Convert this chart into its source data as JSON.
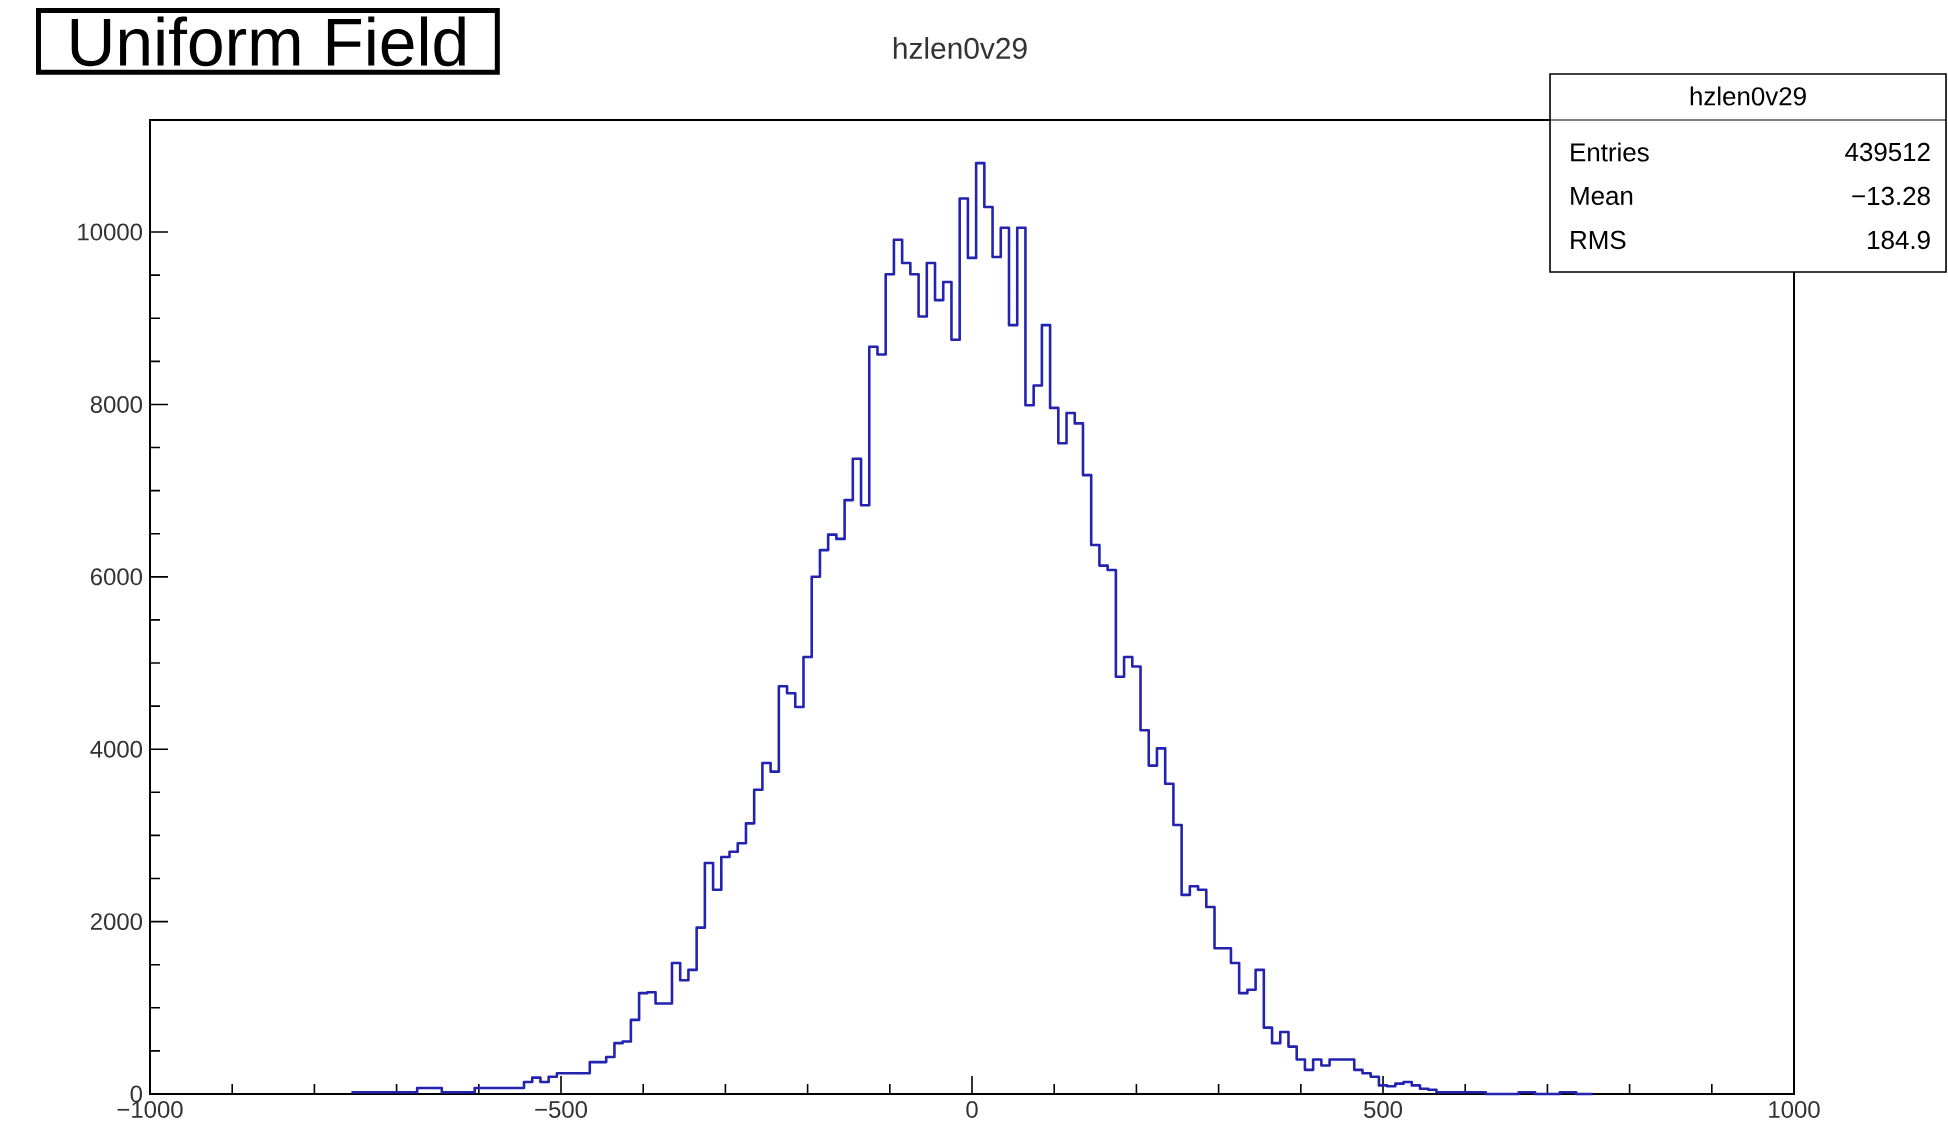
{
  "chart_data": {
    "type": "histogram",
    "title": "hzlen0v29",
    "annotations": [
      "Uniform Field",
      "hzlen0v29",
      "Entries",
      "439512",
      "Mean",
      "−13.28",
      "RMS",
      "184.9"
    ],
    "bins": [
      -755,
      -745,
      -735,
      -725,
      -715,
      -705,
      -695,
      -685,
      -675,
      -665,
      -655,
      -645,
      -635,
      -625,
      -615,
      -605,
      -595,
      -585,
      -575,
      -565,
      -555,
      -545,
      -535,
      -525,
      -515,
      -505,
      -495,
      -485,
      -475,
      -465,
      -455,
      -445,
      -435,
      -425,
      -415,
      -405,
      -395,
      -385,
      -375,
      -365,
      -355,
      -345,
      -335,
      -325,
      -315,
      -305,
      -295,
      -285,
      -275,
      -265,
      -255,
      -245,
      -235,
      -225,
      -215,
      -205,
      -195,
      -185,
      -175,
      -165,
      -155,
      -145,
      -135,
      -125,
      -115,
      -105,
      -95,
      -85,
      -75,
      -65,
      -55,
      -45,
      -35,
      -25,
      -15,
      -5,
      5,
      15,
      25,
      35,
      45,
      55,
      65,
      75,
      85,
      95,
      105,
      115,
      125,
      135,
      145,
      155,
      165,
      175,
      185,
      195,
      205,
      215,
      225,
      235,
      245,
      255,
      265,
      275,
      285,
      295,
      305,
      315,
      325,
      335,
      345,
      355,
      365,
      375,
      385,
      395,
      405,
      415,
      425,
      435,
      445,
      455,
      465,
      475,
      485,
      495,
      505,
      515,
      525,
      535,
      545,
      555,
      565,
      575,
      585,
      595,
      605,
      615,
      625,
      635,
      645,
      655,
      665,
      675,
      685,
      695,
      705,
      715,
      725,
      735,
      745,
      755
    ],
    "values": [
      20,
      20,
      20,
      20,
      20,
      20,
      20,
      20,
      70,
      70,
      70,
      20,
      20,
      20,
      20,
      70,
      70,
      70,
      70,
      70,
      70,
      140,
      190,
      140,
      200,
      240,
      240,
      240,
      240,
      370,
      370,
      430,
      590,
      610,
      860,
      1170,
      1180,
      1050,
      1050,
      1520,
      1320,
      1440,
      1930,
      2680,
      2370,
      2750,
      2810,
      2910,
      3140,
      3530,
      3840,
      3740,
      4730,
      4650,
      4490,
      5070,
      6000,
      6310,
      6490,
      6440,
      6890,
      7370,
      6830,
      8670,
      8580,
      9510,
      9910,
      9640,
      9510,
      9020,
      9640,
      9210,
      9420,
      8750,
      10390,
      9700,
      10800,
      10290,
      9710,
      10050,
      8920,
      10050,
      7990,
      8220,
      8920,
      7960,
      7550,
      7900,
      7780,
      7180,
      6370,
      6130,
      6080,
      4840,
      5070,
      4960,
      4220,
      3810,
      4010,
      3600,
      3120,
      2310,
      2410,
      2370,
      2170,
      1690,
      1690,
      1520,
      1170,
      1210,
      1440,
      770,
      590,
      720,
      550,
      400,
      280,
      400,
      330,
      400,
      400,
      400,
      280,
      240,
      200,
      100,
      90,
      120,
      140,
      100,
      60,
      50,
      20,
      20,
      20,
      20,
      20,
      20,
      0,
      0,
      0,
      0,
      20,
      20,
      0,
      0,
      0,
      20,
      20,
      0,
      0
    ],
    "color": "#2323b0",
    "xlim": [
      -1000,
      1000
    ],
    "ylim": [
      0,
      11300
    ],
    "xticks": [
      {
        "value": -1000,
        "label": "−1000"
      },
      {
        "value": -500,
        "label": "−500"
      },
      0,
      500,
      1000
    ],
    "yticks": [
      0,
      2000,
      4000,
      6000,
      8000,
      10000
    ]
  }
}
